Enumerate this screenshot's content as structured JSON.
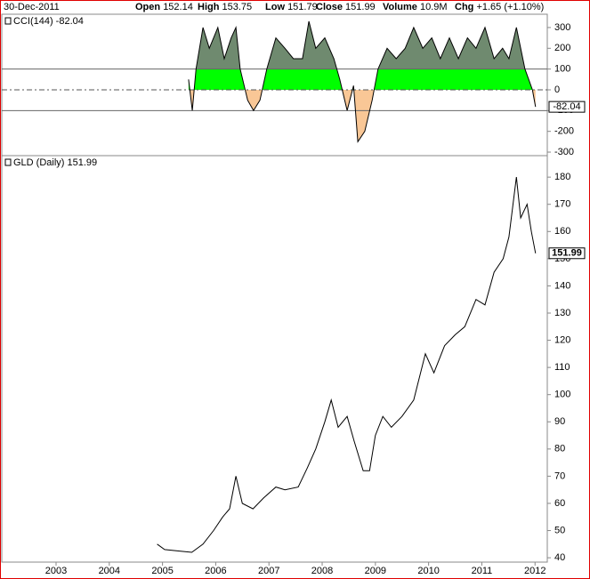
{
  "header": {
    "date": "30-Dec-2011",
    "items": [
      {
        "label": "Open",
        "value": "152.14"
      },
      {
        "label": "High",
        "value": "153.75"
      },
      {
        "label": "Low",
        "value": "151.79"
      },
      {
        "label": "Close",
        "value": "151.99"
      },
      {
        "label": "Volume",
        "value": "10.9M"
      },
      {
        "label": "Chg",
        "value": "+1.65 (+1.10%)"
      }
    ]
  },
  "chart_data": [
    {
      "type": "line",
      "title": "CCI(144) -82.04",
      "x": [
        2005.49,
        2005.56,
        2005.63,
        2005.76,
        2005.88,
        2006.04,
        2006.16,
        2006.29,
        2006.38,
        2006.46,
        2006.6,
        2006.71,
        2006.83,
        2006.96,
        2007.13,
        2007.3,
        2007.46,
        2007.63,
        2007.75,
        2007.88,
        2008.05,
        2008.22,
        2008.33,
        2008.47,
        2008.59,
        2008.67,
        2008.8,
        2008.94,
        2009.05,
        2009.22,
        2009.39,
        2009.56,
        2009.72,
        2009.89,
        2010.06,
        2010.22,
        2010.39,
        2010.56,
        2010.73,
        2010.89,
        2011.06,
        2011.23,
        2011.39,
        2011.51,
        2011.65,
        2011.81,
        2011.95,
        2012.01
      ],
      "series": [
        {
          "name": "CCI(144)",
          "color": "#000000",
          "values": [
            50,
            -100,
            100,
            300,
            200,
            300,
            150,
            250,
            300,
            100,
            -50,
            -100,
            -50,
            100,
            250,
            200,
            150,
            150,
            330,
            200,
            250,
            150,
            50,
            -100,
            20,
            -250,
            -200,
            -50,
            100,
            200,
            150,
            200,
            300,
            200,
            250,
            150,
            250,
            150,
            250,
            200,
            300,
            150,
            200,
            150,
            300,
            100,
            0,
            -82.04
          ]
        }
      ],
      "fill_colors": [
        "#6f8a6f",
        "#00ff00",
        "#f9c796"
      ],
      "reference_lines": [
        100,
        0,
        -100
      ],
      "last_value": -82.04,
      "xlim": [
        2001.98,
        2012.23
      ],
      "ylim": [
        -317,
        364
      ],
      "yticks": [
        300,
        200,
        100,
        0,
        -100,
        -200,
        -300
      ]
    },
    {
      "type": "line",
      "title": "GLD (Daily) 151.99",
      "x": [
        2004.9,
        2005.04,
        2005.3,
        2005.55,
        2005.76,
        2005.96,
        2006.13,
        2006.26,
        2006.38,
        2006.5,
        2006.7,
        2006.9,
        2007.13,
        2007.3,
        2007.55,
        2007.72,
        2007.88,
        2008.05,
        2008.17,
        2008.3,
        2008.47,
        2008.6,
        2008.77,
        2008.89,
        2009.0,
        2009.14,
        2009.3,
        2009.5,
        2009.72,
        2009.94,
        2010.1,
        2010.3,
        2010.5,
        2010.68,
        2010.89,
        2011.06,
        2011.23,
        2011.4,
        2011.51,
        2011.65,
        2011.73,
        2011.85,
        2011.93,
        2012.01
      ],
      "series": [
        {
          "name": "GLD",
          "color": "#000000",
          "values": [
            45,
            43,
            42.5,
            42,
            45,
            50,
            55,
            58,
            70,
            60,
            58,
            62,
            66,
            65,
            66,
            73,
            80,
            90,
            98,
            88,
            92,
            83,
            72,
            72,
            85,
            92,
            88,
            92,
            98,
            115,
            108,
            118,
            122,
            125,
            135,
            133,
            145,
            150,
            158,
            180,
            165,
            170,
            160,
            151.99
          ]
        }
      ],
      "last_value": 151.99,
      "xlim": [
        2001.98,
        2012.23
      ],
      "ylim": [
        38.4,
        187.9
      ],
      "xticks": [
        2003,
        2004,
        2005,
        2006,
        2007,
        2008,
        2009,
        2010,
        2011,
        2012
      ],
      "yticks": [
        40,
        50,
        60,
        70,
        80,
        90,
        100,
        110,
        120,
        130,
        140,
        150,
        160,
        170,
        180
      ]
    }
  ]
}
